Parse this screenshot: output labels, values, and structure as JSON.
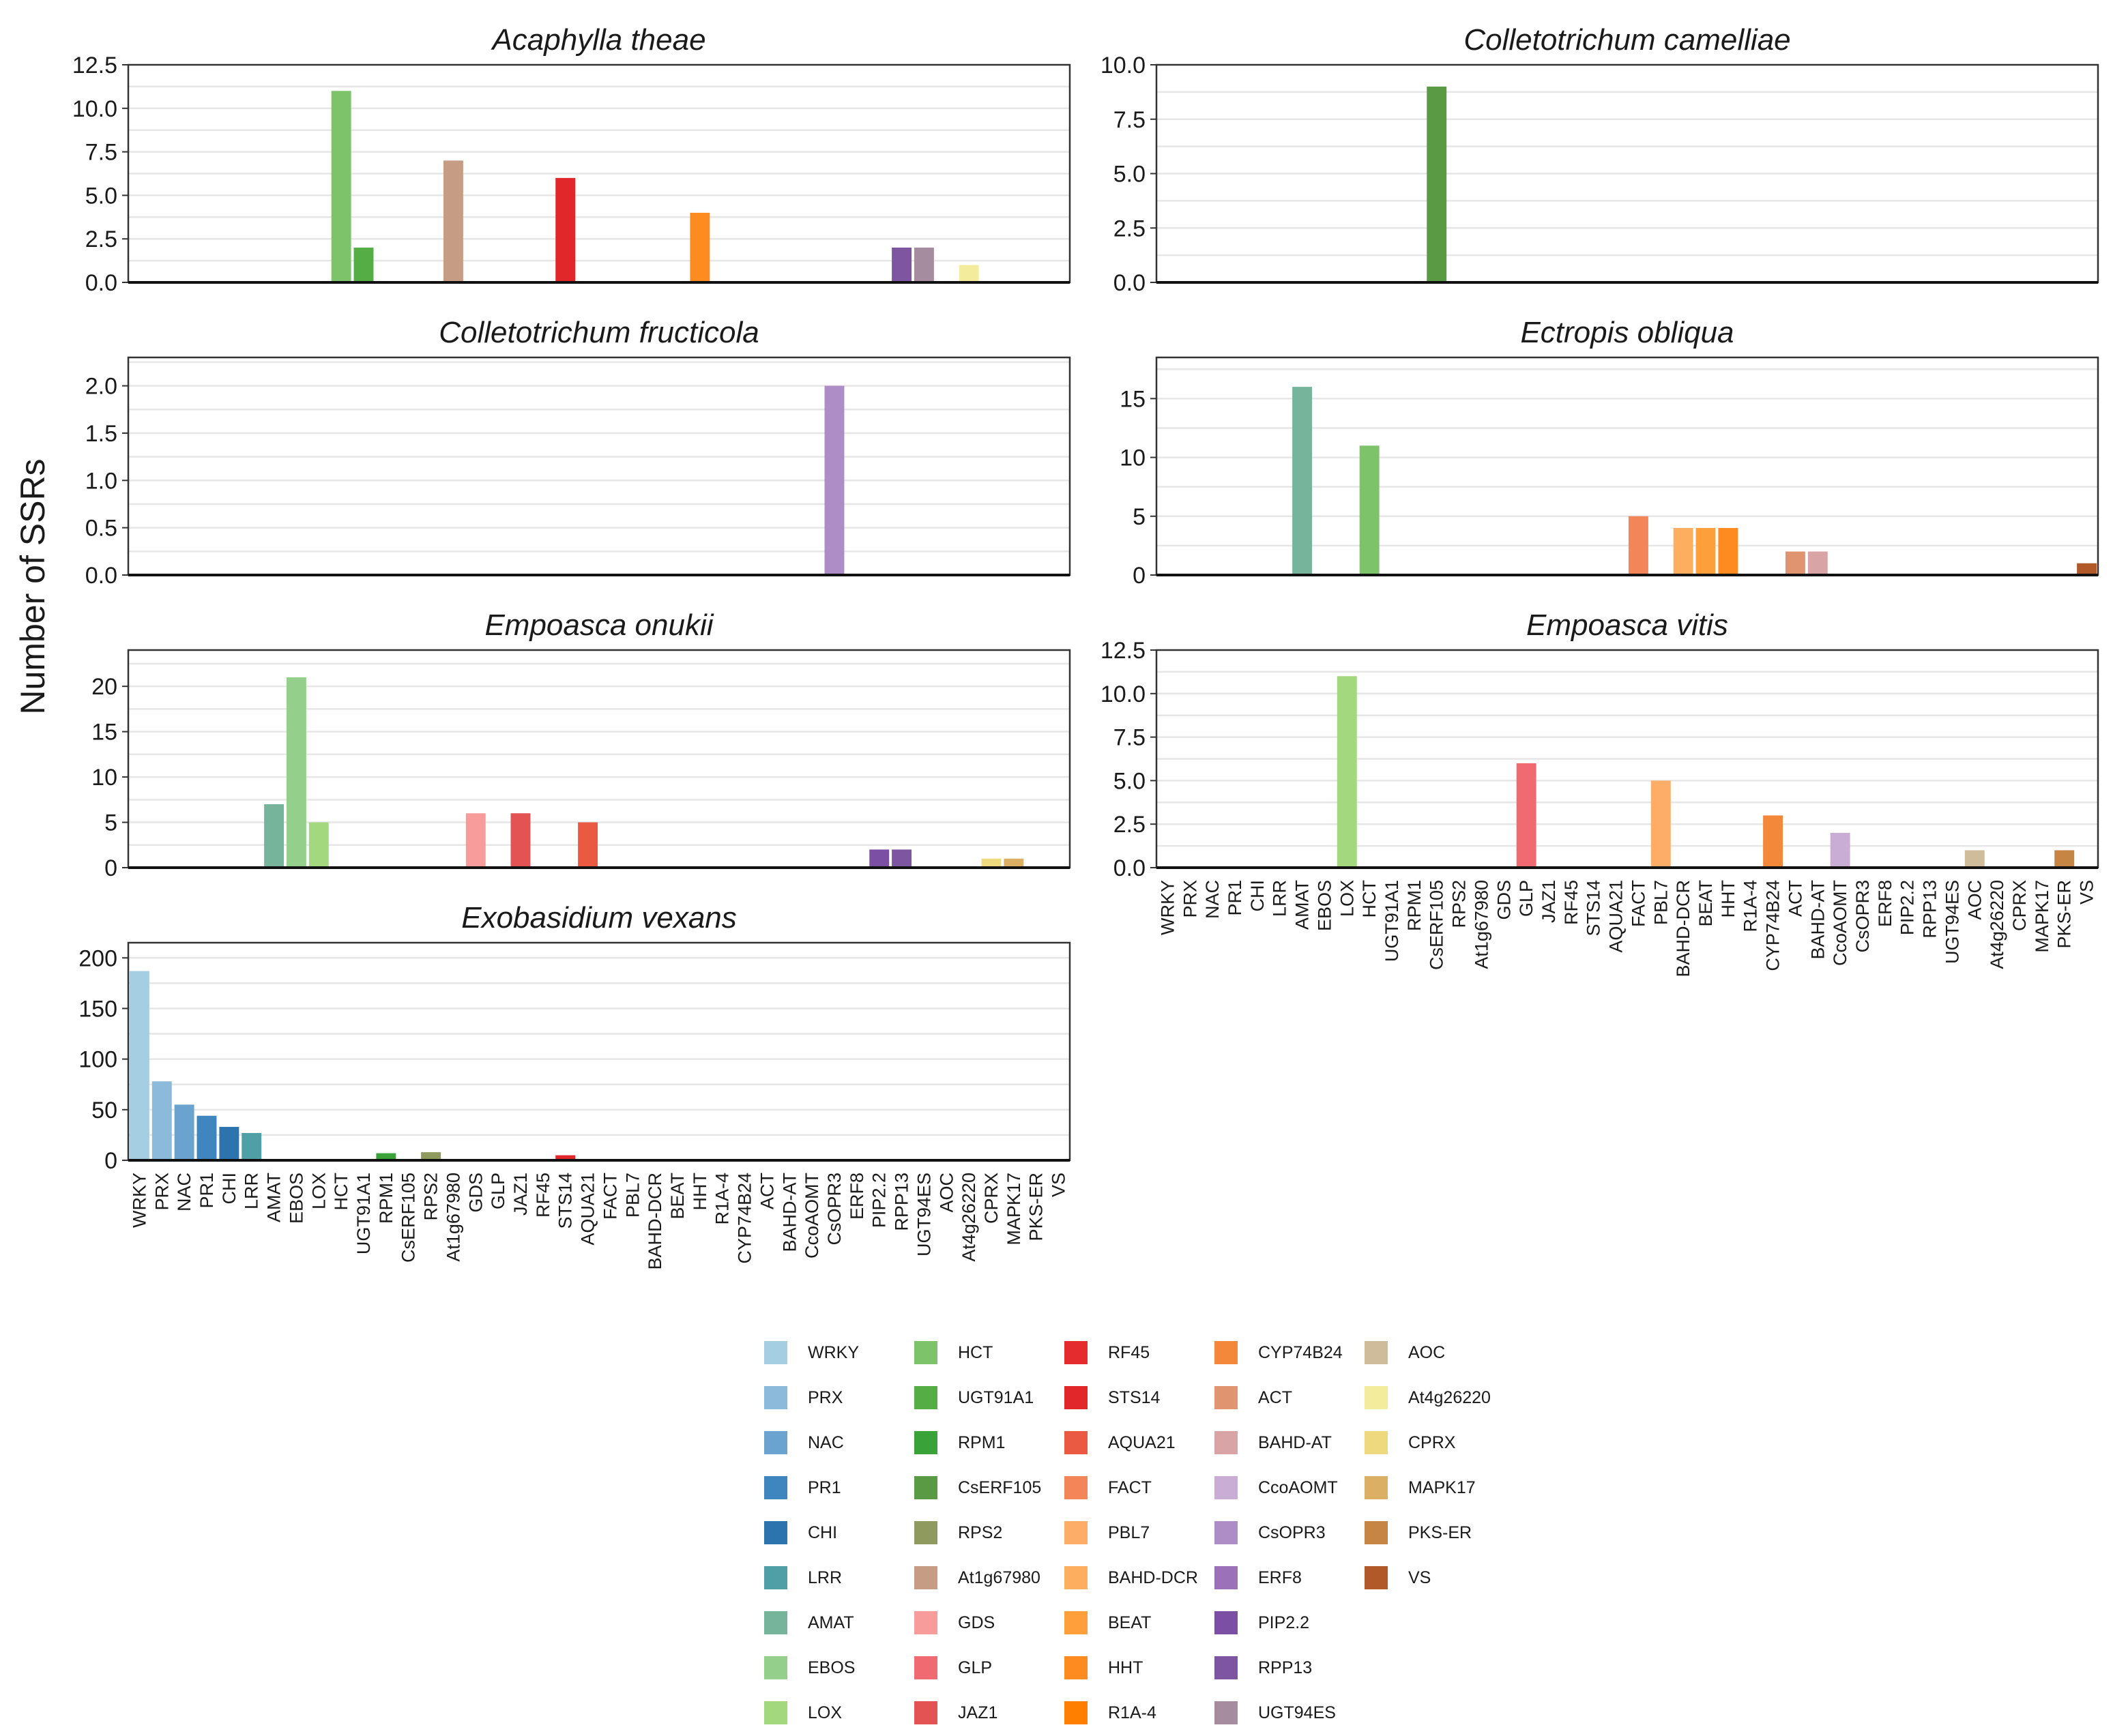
{
  "ylabel": "Number of SSRs",
  "categories": [
    "WRKY",
    "PRX",
    "NAC",
    "PR1",
    "CHI",
    "LRR",
    "AMAT",
    "EBOS",
    "LOX",
    "HCT",
    "UGT91A1",
    "RPM1",
    "CsERF105",
    "RPS2",
    "At1g67980",
    "GDS",
    "GLP",
    "JAZ1",
    "RF45",
    "STS14",
    "AQUA21",
    "FACT",
    "PBL7",
    "BAHD-DCR",
    "BEAT",
    "HHT",
    "R1A-4",
    "CYP74B24",
    "ACT",
    "BAHD-AT",
    "CcoAOMT",
    "CsOPR3",
    "ERF8",
    "PIP2.2",
    "RPP13",
    "UGT94ES",
    "AOC",
    "At4g26220",
    "CPRX",
    "MAPK17",
    "PKS-ER",
    "VS"
  ],
  "colors": [
    "#a6cee3",
    "#8bbadb",
    "#6aa3d0",
    "#3f86be",
    "#2b74ad",
    "#519fa6",
    "#76b49b",
    "#94cf8c",
    "#a3d87f",
    "#7cc36a",
    "#55ae45",
    "#39a33a",
    "#5a9a45",
    "#8e9a5e",
    "#c79c85",
    "#f89b9b",
    "#ef6b71",
    "#e45354",
    "#e42c2f",
    "#e2272a",
    "#ea5a42",
    "#f38659",
    "#fdad68",
    "#fdae5e",
    "#fda03c",
    "#fd8b1f",
    "#ff7f00",
    "#f3873a",
    "#e09570",
    "#d9a4a5",
    "#c9add5",
    "#ae8cc5",
    "#9b72b8",
    "#7b4fa3",
    "#7d55a0",
    "#a58c9f",
    "#cfbc9a",
    "#f3ec9c",
    "#efd97e",
    "#dbb065",
    "#c68545",
    "#b15928"
  ],
  "chart_data": [
    {
      "type": "bar",
      "title": "Acaphylla theae",
      "ylim": [
        0,
        12.5
      ],
      "yticks": [
        "0.0",
        "2.5",
        "5.0",
        "7.5",
        "10.0",
        "12.5"
      ],
      "values": {
        "HCT": 11,
        "UGT91A1": 2,
        "At1g67980": 7,
        "STS14": 6,
        "HHT": 4,
        "RPP13": 2,
        "UGT94ES": 2,
        "At4g26220": 1
      }
    },
    {
      "type": "bar",
      "title": "Colletotrichum camelliae",
      "ylim": [
        0,
        10
      ],
      "yticks": [
        "0.0",
        "2.5",
        "5.0",
        "7.5",
        "10.0"
      ],
      "values": {
        "CsERF105": 9
      }
    },
    {
      "type": "bar",
      "title": "Colletotrichum fructicola",
      "ylim": [
        0,
        2.3
      ],
      "yticks": [
        "0.0",
        "0.5",
        "1.0",
        "1.5",
        "2.0"
      ],
      "values": {
        "CsOPR3": 2
      }
    },
    {
      "type": "bar",
      "title": "Ectropis obliqua",
      "ylim": [
        0,
        18.5
      ],
      "yticks": [
        "0",
        "5",
        "10",
        "15"
      ],
      "values": {
        "AMAT": 16,
        "HCT": 11,
        "FACT": 5,
        "BAHD-DCR": 4,
        "BEAT": 4,
        "HHT": 4,
        "ACT": 2,
        "BAHD-AT": 2,
        "VS": 1
      }
    },
    {
      "type": "bar",
      "title": "Empoasca onukii",
      "ylim": [
        0,
        24
      ],
      "yticks": [
        "0",
        "5",
        "10",
        "15",
        "20"
      ],
      "values": {
        "AMAT": 7,
        "EBOS": 21,
        "LOX": 5,
        "GDS": 6,
        "JAZ1": 6,
        "AQUA21": 5,
        "PIP2.2": 2,
        "RPP13": 2,
        "CPRX": 1,
        "MAPK17": 1
      }
    },
    {
      "type": "bar",
      "title": "Empoasca vitis",
      "ylim": [
        0,
        12.5
      ],
      "yticks": [
        "0.0",
        "2.5",
        "5.0",
        "7.5",
        "10.0",
        "12.5"
      ],
      "values": {
        "LOX": 11,
        "GLP": 6,
        "PBL7": 5,
        "CYP74B24": 3,
        "CcoAOMT": 2,
        "AOC": 1,
        "PKS-ER": 1
      }
    },
    {
      "type": "bar",
      "title": "Exobasidium vexans",
      "ylim": [
        0,
        215
      ],
      "yticks": [
        "0",
        "50",
        "100",
        "150",
        "200"
      ],
      "values": {
        "WRKY": 187,
        "PRX": 78,
        "NAC": 55,
        "PR1": 44,
        "CHI": 33,
        "LRR": 27,
        "RPM1": 7,
        "RPS2": 8,
        "STS14": 5
      }
    }
  ]
}
